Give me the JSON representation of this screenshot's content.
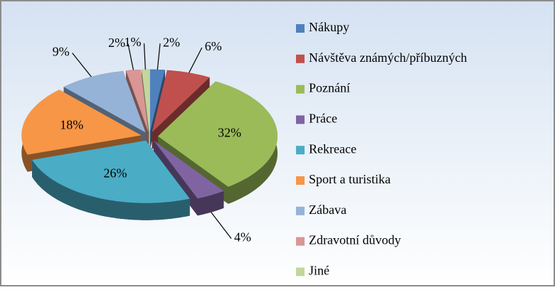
{
  "chart_data": {
    "type": "pie3d",
    "categories": [
      "Nákupy",
      "Návštěva známých/příbuzných",
      "Poznání",
      "Práce",
      "Rekreace",
      "Sport a turistika",
      "Zábava",
      "Zdravotní důvody",
      "Jiné"
    ],
    "values": [
      2,
      6,
      32,
      4,
      26,
      18,
      9,
      2,
      1
    ],
    "value_labels": [
      "2%",
      "6%",
      "32%",
      "4%",
      "26%",
      "18%",
      "9%",
      "2%",
      "1%"
    ],
    "colors": [
      "#4f81bd",
      "#c0504d",
      "#9bbb59",
      "#8064a2",
      "#4bacc6",
      "#f79646",
      "#95b3d7",
      "#d99694",
      "#c3d69b"
    ],
    "legend": "right"
  }
}
